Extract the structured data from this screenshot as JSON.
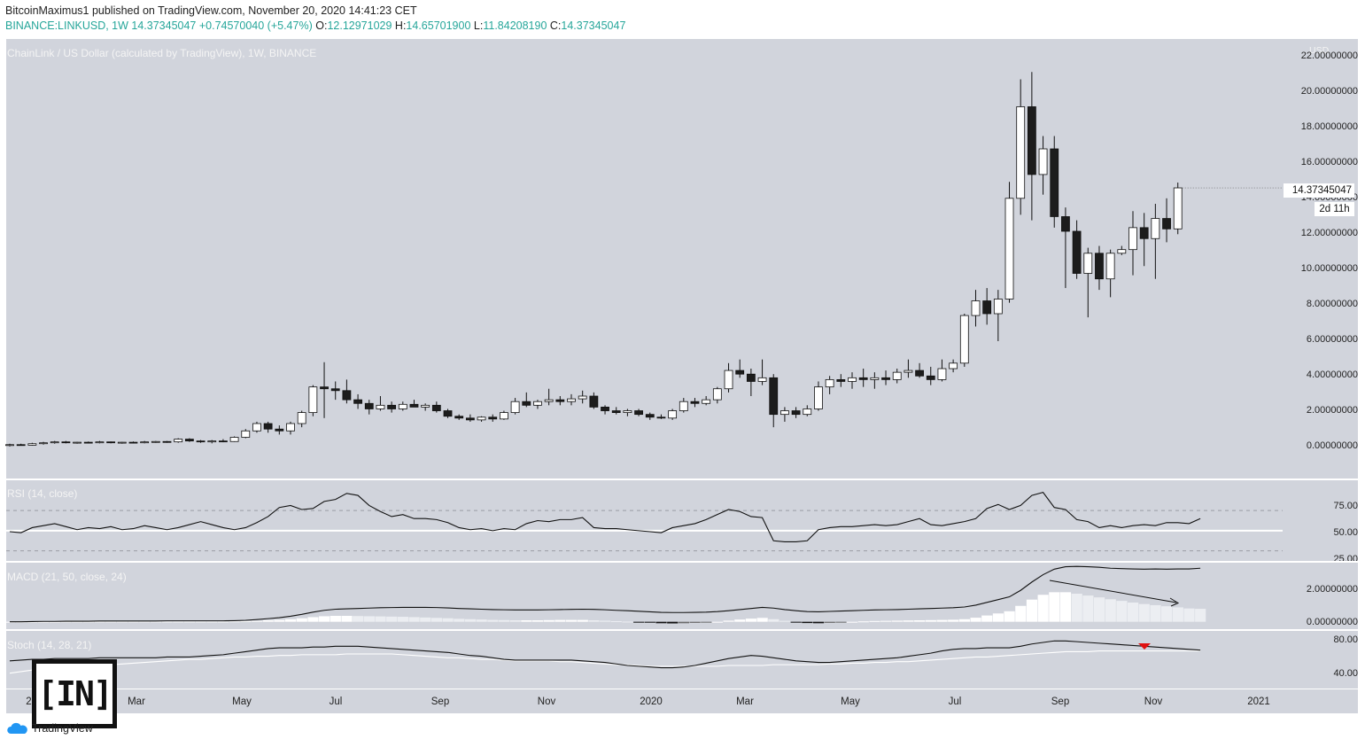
{
  "header": {
    "line1": "BitcoinMaximus1 published on TradingView.com, November 20, 2020 14:41:23 CET",
    "line2_prefix": "BINANCE:LINKUSD, 1W  14.37345047  +0.74570040 (+5.47%)",
    "o_label": "O:",
    "o_value": "12.12971029",
    "h_label": "H:",
    "h_value": "14.65701900",
    "l_label": "L:",
    "l_value": "11.84208190",
    "c_label": "C:",
    "c_value": "14.37345047"
  },
  "price_panel": {
    "title": "ChainLink / US Dollar (calculated by TradingView), 1W, BINANCE",
    "currency": "USD",
    "y_ticks": [
      "22.00000000",
      "20.00000000",
      "18.00000000",
      "16.00000000",
      "14.00000000",
      "12.00000000",
      "10.00000000",
      "8.00000000",
      "6.00000000",
      "4.00000000",
      "2.00000000",
      "0.00000000"
    ],
    "last_price": "14.37345047",
    "countdown": "2d 11h"
  },
  "rsi_panel": {
    "title": "RSI (14, close)",
    "y_ticks": [
      "75.00",
      "50.00",
      "25.00"
    ]
  },
  "macd_panel": {
    "title": "MACD (21, 50, close, 24)",
    "y_ticks": [
      "2.00000000",
      "0.00000000"
    ]
  },
  "stoch_panel": {
    "title": "Stoch (14, 28, 21)",
    "y_ticks": [
      "80.00",
      "40.00"
    ]
  },
  "x_axis": {
    "labels": [
      "2019",
      "Mar",
      "May",
      "Jul",
      "Sep",
      "Nov",
      "2020",
      "Mar",
      "May",
      "Jul",
      "Sep",
      "Nov",
      "2021"
    ]
  },
  "branding": {
    "tradingview": "TradingView",
    "watermark": "[IN]"
  },
  "colors": {
    "background": "#d1d4dc",
    "bull": "#ffffff",
    "bear": "#1c1c1c",
    "signal": "#e01010",
    "header_values": "#26a69a"
  },
  "chart_data": [
    {
      "type": "candlestick",
      "title": "ChainLink / US Dollar (calculated by TradingView), 1W, BINANCE",
      "ylabel": "USD",
      "ylim": [
        -1.5,
        22.5
      ],
      "first_week": "2019-01-07",
      "interval": "1W",
      "ohlc": [
        [
          0.3,
          0.4,
          0.25,
          0.35
        ],
        [
          0.35,
          0.4,
          0.3,
          0.32
        ],
        [
          0.32,
          0.45,
          0.3,
          0.4
        ],
        [
          0.4,
          0.5,
          0.35,
          0.45
        ],
        [
          0.45,
          0.55,
          0.4,
          0.5
        ],
        [
          0.5,
          0.55,
          0.42,
          0.45
        ],
        [
          0.45,
          0.5,
          0.4,
          0.48
        ],
        [
          0.48,
          0.52,
          0.42,
          0.45
        ],
        [
          0.45,
          0.55,
          0.42,
          0.5
        ],
        [
          0.5,
          0.52,
          0.42,
          0.45
        ],
        [
          0.45,
          0.5,
          0.4,
          0.48
        ],
        [
          0.48,
          0.52,
          0.42,
          0.45
        ],
        [
          0.45,
          0.55,
          0.42,
          0.5
        ],
        [
          0.5,
          0.55,
          0.45,
          0.52
        ],
        [
          0.52,
          0.55,
          0.45,
          0.5
        ],
        [
          0.5,
          0.7,
          0.45,
          0.65
        ],
        [
          0.65,
          0.7,
          0.5,
          0.55
        ],
        [
          0.55,
          0.6,
          0.45,
          0.5
        ],
        [
          0.5,
          0.6,
          0.42,
          0.55
        ],
        [
          0.55,
          0.65,
          0.48,
          0.52
        ],
        [
          0.52,
          0.8,
          0.5,
          0.75
        ],
        [
          0.75,
          1.2,
          0.7,
          1.1
        ],
        [
          1.1,
          1.6,
          1.0,
          1.5
        ],
        [
          1.5,
          1.6,
          1.0,
          1.2
        ],
        [
          1.2,
          1.4,
          0.9,
          1.1
        ],
        [
          1.1,
          1.6,
          0.9,
          1.5
        ],
        [
          1.5,
          2.2,
          1.3,
          2.1
        ],
        [
          2.1,
          3.6,
          1.9,
          3.5
        ],
        [
          3.5,
          4.85,
          1.8,
          3.4
        ],
        [
          3.4,
          3.8,
          2.8,
          3.3
        ],
        [
          3.3,
          3.9,
          2.6,
          2.8
        ],
        [
          2.8,
          3.1,
          2.3,
          2.6
        ],
        [
          2.6,
          2.8,
          2.0,
          2.3
        ],
        [
          2.3,
          3.0,
          2.2,
          2.5
        ],
        [
          2.5,
          2.7,
          2.1,
          2.3
        ],
        [
          2.3,
          2.7,
          2.2,
          2.55
        ],
        [
          2.55,
          2.8,
          2.4,
          2.4
        ],
        [
          2.4,
          2.6,
          2.2,
          2.5
        ],
        [
          2.5,
          2.7,
          2.1,
          2.2
        ],
        [
          2.2,
          2.3,
          1.8,
          1.9
        ],
        [
          1.9,
          2.0,
          1.7,
          1.8
        ],
        [
          1.8,
          2.0,
          1.6,
          1.7
        ],
        [
          1.7,
          1.9,
          1.6,
          1.85
        ],
        [
          1.85,
          2.0,
          1.6,
          1.75
        ],
        [
          1.75,
          2.2,
          1.7,
          2.1
        ],
        [
          2.1,
          2.9,
          2.0,
          2.7
        ],
        [
          2.7,
          3.2,
          2.4,
          2.5
        ],
        [
          2.5,
          2.8,
          2.3,
          2.7
        ],
        [
          2.7,
          3.4,
          2.5,
          2.8
        ],
        [
          2.8,
          3.0,
          2.5,
          2.7
        ],
        [
          2.7,
          3.1,
          2.5,
          2.85
        ],
        [
          2.85,
          3.3,
          2.6,
          3.0
        ],
        [
          3.0,
          3.2,
          2.3,
          2.4
        ],
        [
          2.4,
          2.5,
          2.0,
          2.2
        ],
        [
          2.2,
          2.4,
          2.0,
          2.1
        ],
        [
          2.1,
          2.3,
          1.9,
          2.2
        ],
        [
          2.2,
          2.3,
          1.9,
          2.0
        ],
        [
          2.0,
          2.1,
          1.7,
          1.85
        ],
        [
          1.85,
          2.0,
          1.75,
          1.8
        ],
        [
          1.8,
          2.3,
          1.7,
          2.2
        ],
        [
          2.2,
          2.9,
          2.1,
          2.7
        ],
        [
          2.7,
          2.9,
          2.4,
          2.6
        ],
        [
          2.6,
          3.0,
          2.5,
          2.8
        ],
        [
          2.8,
          3.5,
          2.6,
          3.4
        ],
        [
          3.4,
          4.8,
          3.2,
          4.4
        ],
        [
          4.4,
          5.0,
          4.0,
          4.2
        ],
        [
          4.2,
          4.5,
          3.0,
          3.8
        ],
        [
          3.8,
          5.0,
          3.6,
          4.0
        ],
        [
          4.0,
          4.2,
          1.3,
          2.0
        ],
        [
          2.0,
          2.4,
          1.6,
          2.2
        ],
        [
          2.2,
          2.4,
          1.8,
          2.0
        ],
        [
          2.0,
          2.5,
          1.9,
          2.3
        ],
        [
          2.3,
          3.8,
          2.2,
          3.5
        ],
        [
          3.5,
          4.1,
          3.1,
          3.9
        ],
        [
          3.9,
          4.2,
          3.5,
          3.8
        ],
        [
          3.8,
          4.3,
          3.4,
          4.0
        ],
        [
          4.0,
          4.5,
          3.5,
          3.9
        ],
        [
          3.9,
          4.3,
          3.4,
          4.0
        ],
        [
          4.0,
          4.4,
          3.6,
          3.9
        ],
        [
          3.9,
          4.5,
          3.7,
          4.3
        ],
        [
          4.3,
          5.0,
          4.0,
          4.4
        ],
        [
          4.4,
          4.8,
          4.0,
          4.1
        ],
        [
          4.1,
          4.6,
          3.6,
          3.9
        ],
        [
          3.9,
          5.0,
          3.8,
          4.5
        ],
        [
          4.5,
          5.0,
          4.3,
          4.8
        ],
        [
          4.8,
          7.5,
          4.6,
          7.4
        ],
        [
          7.4,
          8.8,
          6.8,
          8.2
        ],
        [
          8.2,
          8.9,
          6.9,
          7.5
        ],
        [
          7.5,
          8.8,
          6.0,
          8.3
        ],
        [
          8.3,
          14.7,
          8.1,
          13.8
        ],
        [
          13.8,
          20.3,
          12.9,
          18.8
        ],
        [
          18.8,
          20.7,
          12.6,
          15.1
        ],
        [
          15.1,
          17.2,
          14.0,
          16.5
        ],
        [
          16.5,
          17.2,
          12.2,
          12.8
        ],
        [
          12.8,
          13.3,
          8.9,
          12.0
        ],
        [
          12.0,
          12.6,
          9.4,
          9.7
        ],
        [
          9.7,
          11.1,
          7.3,
          10.8
        ],
        [
          10.8,
          11.2,
          8.8,
          9.4
        ],
        [
          9.4,
          11.0,
          8.4,
          10.8
        ],
        [
          10.8,
          11.2,
          10.7,
          11.0
        ],
        [
          11.0,
          13.1,
          9.6,
          12.2
        ],
        [
          12.2,
          13.0,
          10.1,
          11.6
        ],
        [
          11.6,
          13.5,
          9.4,
          12.7
        ],
        [
          12.7,
          13.8,
          11.4,
          12.13
        ],
        [
          12.13,
          14.66,
          11.84,
          14.37
        ]
      ]
    },
    {
      "type": "line",
      "title": "RSI (14, close)",
      "ylim": [
        20,
        100
      ],
      "levels": [
        70,
        50,
        30
      ],
      "values": [
        49,
        48,
        53,
        55,
        57,
        54,
        51,
        53,
        52,
        54,
        51,
        52,
        55,
        53,
        51,
        53,
        56,
        59,
        56,
        53,
        51,
        53,
        58,
        64,
        73,
        75,
        71,
        72,
        79,
        81,
        87,
        85,
        75,
        69,
        64,
        66,
        62,
        62,
        61,
        58,
        53,
        51,
        52,
        50,
        52,
        51,
        57,
        60,
        59,
        61,
        61,
        63,
        53,
        52,
        52,
        51,
        50,
        49,
        48,
        53,
        55,
        57,
        61,
        66,
        71,
        69,
        64,
        63,
        40,
        39,
        39,
        40,
        51,
        53,
        54,
        54,
        55,
        56,
        55,
        56,
        59,
        62,
        56,
        55,
        57,
        59,
        62,
        72,
        76,
        71,
        75,
        85,
        88,
        73,
        71,
        61,
        59,
        53,
        55,
        53,
        55,
        56,
        55,
        58,
        58,
        57,
        62
      ]
    },
    {
      "type": "bar+line",
      "title": "MACD (21, 50, close, 24)",
      "ylim": [
        -0.4,
        3.2
      ],
      "macd": [
        0.0,
        0.0,
        0.01,
        0.02,
        0.02,
        0.03,
        0.03,
        0.03,
        0.04,
        0.04,
        0.04,
        0.04,
        0.04,
        0.04,
        0.05,
        0.05,
        0.05,
        0.05,
        0.05,
        0.05,
        0.06,
        0.08,
        0.12,
        0.17,
        0.22,
        0.3,
        0.4,
        0.52,
        0.62,
        0.68,
        0.7,
        0.72,
        0.74,
        0.76,
        0.77,
        0.78,
        0.78,
        0.78,
        0.77,
        0.75,
        0.72,
        0.7,
        0.68,
        0.66,
        0.65,
        0.64,
        0.64,
        0.64,
        0.65,
        0.66,
        0.67,
        0.68,
        0.67,
        0.65,
        0.62,
        0.6,
        0.57,
        0.54,
        0.51,
        0.5,
        0.5,
        0.51,
        0.52,
        0.55,
        0.6,
        0.66,
        0.72,
        0.78,
        0.74,
        0.66,
        0.6,
        0.55,
        0.54,
        0.56,
        0.58,
        0.6,
        0.62,
        0.64,
        0.65,
        0.66,
        0.68,
        0.7,
        0.72,
        0.74,
        0.76,
        0.8,
        0.9,
        1.05,
        1.2,
        1.35,
        1.7,
        2.15,
        2.55,
        2.85,
        2.98,
        3.0,
        2.98,
        2.95,
        2.9,
        2.88,
        2.86,
        2.85,
        2.86,
        2.85,
        2.86,
        2.86,
        2.9
      ],
      "histogram": [
        0.0,
        0.0,
        0.0,
        0.0,
        0.0,
        0.01,
        0.01,
        0.01,
        0.01,
        0.01,
        0.01,
        0.01,
        0.01,
        0.01,
        0.01,
        0.01,
        0.01,
        0.01,
        0.01,
        0.01,
        0.02,
        0.03,
        0.05,
        0.08,
        0.1,
        0.14,
        0.19,
        0.25,
        0.3,
        0.32,
        0.32,
        0.31,
        0.3,
        0.29,
        0.28,
        0.27,
        0.25,
        0.23,
        0.21,
        0.19,
        0.16,
        0.14,
        0.12,
        0.1,
        0.09,
        0.08,
        0.08,
        0.08,
        0.09,
        0.1,
        0.1,
        0.1,
        0.08,
        0.06,
        0.03,
        0.01,
        -0.02,
        -0.05,
        -0.08,
        -0.09,
        -0.08,
        -0.06,
        -0.04,
        0.0,
        0.06,
        0.12,
        0.17,
        0.21,
        0.14,
        0.05,
        -0.02,
        -0.07,
        -0.08,
        -0.06,
        -0.03,
        0.0,
        0.02,
        0.04,
        0.05,
        0.06,
        0.07,
        0.08,
        0.09,
        0.1,
        0.11,
        0.14,
        0.22,
        0.34,
        0.45,
        0.57,
        0.86,
        1.2,
        1.46,
        1.6,
        1.6,
        1.52,
        1.42,
        1.32,
        1.22,
        1.13,
        1.04,
        0.96,
        0.9,
        0.84,
        0.78,
        0.72,
        0.7
      ]
    },
    {
      "type": "line",
      "title": "Stoch (14, 28, 21)",
      "ylim": [
        20,
        95
      ],
      "k": [
        56,
        57,
        58,
        58,
        59,
        59,
        59,
        59,
        60,
        60,
        60,
        60,
        60,
        60,
        61,
        61,
        61,
        62,
        63,
        64,
        66,
        68,
        70,
        72,
        73,
        73,
        73,
        74,
        74,
        75,
        75,
        75,
        74,
        73,
        72,
        71,
        70,
        69,
        68,
        67,
        65,
        63,
        62,
        60,
        58,
        57,
        57,
        57,
        57,
        57,
        57,
        56,
        55,
        54,
        52,
        50,
        49,
        48,
        47,
        47,
        48,
        50,
        53,
        56,
        59,
        61,
        63,
        62,
        60,
        58,
        56,
        55,
        54,
        54,
        55,
        56,
        57,
        58,
        59,
        60,
        62,
        64,
        66,
        69,
        71,
        72,
        72,
        73,
        73,
        73,
        75,
        78,
        80,
        82,
        82,
        81,
        80,
        79,
        78,
        77,
        76,
        75,
        74,
        73,
        72,
        71,
        70
      ],
      "d": [
        40,
        42,
        44,
        45,
        46,
        47,
        48,
        49,
        50,
        51,
        52,
        53,
        54,
        55,
        56,
        57,
        58,
        58,
        59,
        60,
        61,
        61,
        62,
        62,
        63,
        63,
        64,
        64,
        64,
        64,
        65,
        65,
        65,
        65,
        65,
        64,
        63,
        62,
        61,
        60,
        60,
        59,
        58,
        58,
        57,
        56,
        56,
        56,
        56,
        55,
        55,
        54,
        53,
        52,
        51,
        51,
        50,
        49,
        49,
        49,
        49,
        49,
        49,
        49,
        50,
        50,
        50,
        50,
        51,
        51,
        51,
        51,
        51,
        52,
        52,
        53,
        53,
        54,
        54,
        55,
        55,
        56,
        57,
        58,
        59,
        60,
        61,
        61,
        62,
        63,
        64,
        65,
        66,
        67,
        68,
        68,
        68,
        69,
        69,
        69,
        69,
        69,
        69,
        69,
        69,
        69,
        69
      ]
    }
  ]
}
